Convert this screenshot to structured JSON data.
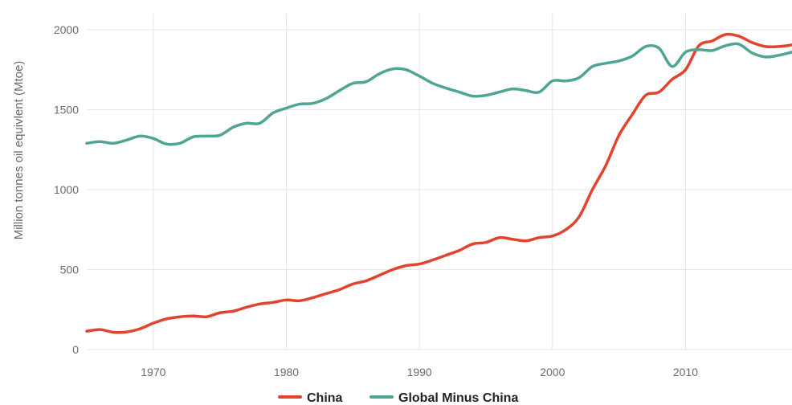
{
  "chart_data": {
    "type": "line",
    "ylabel": "Million tonnes oil equivlent (Mtoe)",
    "xlabel": "",
    "xlim": [
      1965,
      2018
    ],
    "ylim": [
      0,
      2000
    ],
    "x_ticks": [
      1970,
      1980,
      1990,
      2000,
      2010
    ],
    "y_ticks": [
      0,
      500,
      1000,
      1500,
      2000
    ],
    "grid": true,
    "legend_position": "bottom-center",
    "x": [
      1965,
      1966,
      1967,
      1968,
      1969,
      1970,
      1971,
      1972,
      1973,
      1974,
      1975,
      1976,
      1977,
      1978,
      1979,
      1980,
      1981,
      1982,
      1983,
      1984,
      1985,
      1986,
      1987,
      1988,
      1989,
      1990,
      1991,
      1992,
      1993,
      1994,
      1995,
      1996,
      1997,
      1998,
      1999,
      2000,
      2001,
      2002,
      2003,
      2004,
      2005,
      2006,
      2007,
      2008,
      2009,
      2010,
      2011,
      2012,
      2013,
      2014,
      2015,
      2016,
      2017,
      2018
    ],
    "series": [
      {
        "name": "China",
        "color": "#e2432f",
        "values": [
          115,
          125,
          108,
          110,
          130,
          165,
          192,
          205,
          210,
          205,
          230,
          240,
          265,
          285,
          295,
          310,
          305,
          325,
          350,
          375,
          410,
          430,
          465,
          500,
          525,
          535,
          560,
          590,
          620,
          660,
          670,
          700,
          690,
          680,
          700,
          710,
          750,
          830,
          1000,
          1150,
          1340,
          1470,
          1590,
          1610,
          1690,
          1750,
          1900,
          1930,
          1970,
          1960,
          1920,
          1895,
          1895,
          1905
        ]
      },
      {
        "name": "Global Minus China",
        "color": "#4ea593",
        "values": [
          1290,
          1300,
          1290,
          1310,
          1335,
          1320,
          1285,
          1290,
          1330,
          1335,
          1340,
          1390,
          1415,
          1415,
          1480,
          1510,
          1535,
          1540,
          1570,
          1620,
          1665,
          1675,
          1725,
          1755,
          1750,
          1710,
          1665,
          1635,
          1610,
          1585,
          1590,
          1610,
          1630,
          1620,
          1610,
          1680,
          1680,
          1700,
          1770,
          1790,
          1805,
          1835,
          1895,
          1885,
          1770,
          1860,
          1875,
          1870,
          1900,
          1910,
          1855,
          1830,
          1840,
          1860
        ]
      }
    ]
  }
}
